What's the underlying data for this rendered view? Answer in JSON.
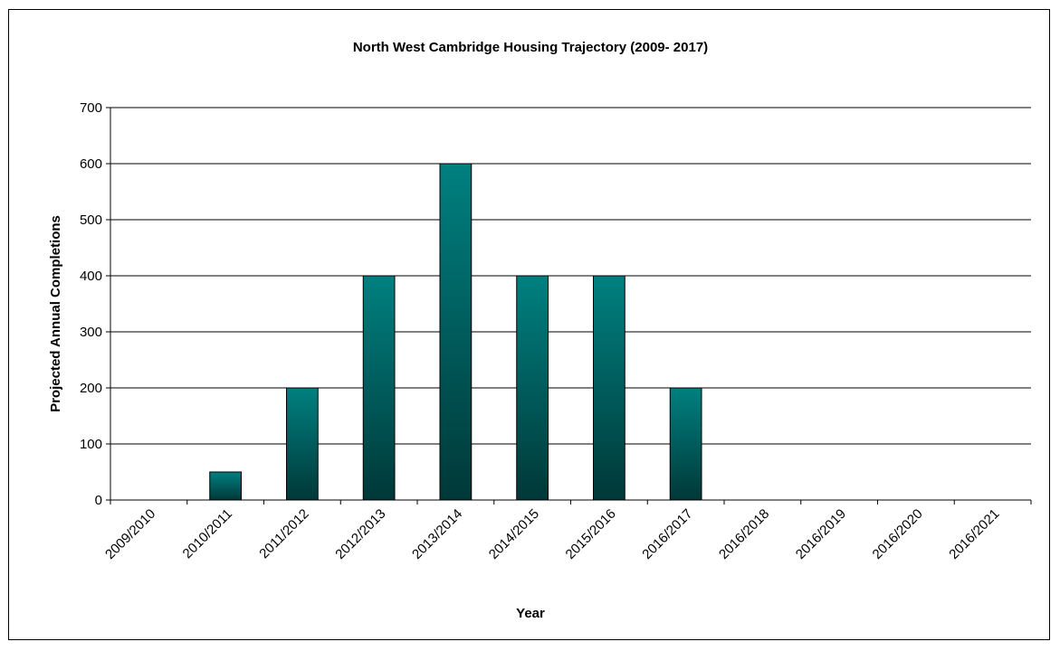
{
  "chart_data": {
    "type": "bar",
    "title": "North West Cambridge Housing Trajectory (2009- 2017)",
    "xlabel": "Year",
    "ylabel": "Projected Annual Completions",
    "categories": [
      "2009/2010",
      "2010/2011",
      "2011/2012",
      "2012/2013",
      "2013/2014",
      "2014/2015",
      "2015/2016",
      "2016/2017",
      "2016/2018",
      "2016/2019",
      "2016/2020",
      "2016/2021"
    ],
    "values": [
      0,
      50,
      200,
      400,
      600,
      400,
      400,
      200,
      0,
      0,
      0,
      0
    ],
    "ylim": [
      0,
      700
    ],
    "yticks": [
      0,
      100,
      200,
      300,
      400,
      500,
      600,
      700
    ],
    "grid": true,
    "legend": "none",
    "bar_color_top": "#008080",
    "bar_color_bottom": "#003838"
  }
}
